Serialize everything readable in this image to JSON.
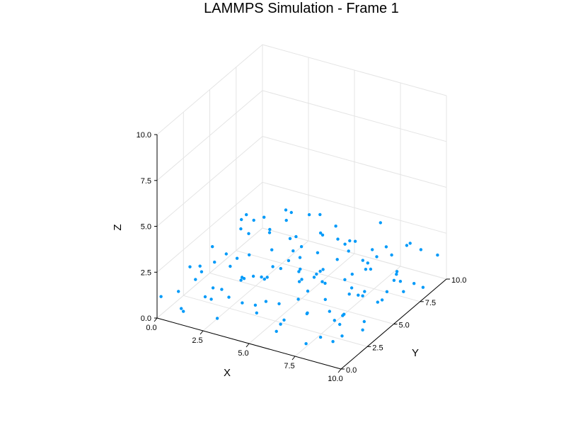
{
  "chart_data": {
    "type": "scatter",
    "title": "LAMMPS Simulation - Frame 1",
    "xlabel": "X",
    "ylabel": "Y",
    "zlabel": "Z",
    "xlim": [
      0,
      10
    ],
    "ylim": [
      0,
      10
    ],
    "zlim": [
      0,
      10
    ],
    "xticks": [
      "0.0",
      "2.5",
      "5.0",
      "7.5",
      "10.0"
    ],
    "yticks": [
      "0.0",
      "2.5",
      "5.0",
      "7.5",
      "10.0"
    ],
    "zticks": [
      "0.0",
      "2.5",
      "5.0",
      "7.5",
      "10.0"
    ],
    "grid": true,
    "legend": "none",
    "marker_color": "#009af9",
    "series": [
      {
        "points": [
          [
            0.1,
            0.2,
            1.1
          ],
          [
            0.3,
            1.5,
            0.8
          ],
          [
            0.5,
            3.2,
            1.4
          ],
          [
            0.2,
            5.1,
            0.6
          ],
          [
            0.4,
            7.3,
            1.9
          ],
          [
            0.6,
            9.1,
            1.2
          ],
          [
            1.2,
            0.4,
            0.5
          ],
          [
            1.1,
            2.3,
            1.7
          ],
          [
            1.4,
            4.5,
            1.0
          ],
          [
            1.0,
            6.2,
            2.1
          ],
          [
            1.3,
            8.4,
            0.9
          ],
          [
            1.5,
            9.6,
            1.6
          ],
          [
            2.1,
            0.9,
            1.3
          ],
          [
            2.3,
            2.8,
            0.4
          ],
          [
            2.0,
            4.1,
            1.8
          ],
          [
            2.4,
            6.7,
            1.1
          ],
          [
            2.2,
            8.9,
            2.0
          ],
          [
            2.6,
            1.6,
            1.5
          ],
          [
            3.1,
            0.3,
            0.7
          ],
          [
            3.3,
            2.2,
            1.9
          ],
          [
            3.0,
            3.9,
            1.2
          ],
          [
            3.4,
            5.8,
            0.8
          ],
          [
            3.2,
            7.6,
            1.6
          ],
          [
            3.5,
            9.4,
            1.0
          ],
          [
            4.0,
            1.1,
            1.4
          ],
          [
            4.2,
            3.0,
            0.6
          ],
          [
            4.4,
            4.8,
            2.0
          ],
          [
            4.1,
            6.4,
            1.3
          ],
          [
            4.3,
            8.2,
            1.7
          ],
          [
            4.6,
            9.8,
            0.5
          ],
          [
            5.0,
            0.6,
            1.8
          ],
          [
            5.2,
            2.5,
            1.0
          ],
          [
            5.4,
            4.3,
            1.5
          ],
          [
            5.1,
            6.0,
            0.7
          ],
          [
            5.3,
            7.9,
            1.9
          ],
          [
            5.5,
            9.2,
            1.2
          ],
          [
            6.1,
            1.4,
            0.9
          ],
          [
            6.3,
            3.3,
            1.6
          ],
          [
            6.0,
            5.2,
            1.1
          ],
          [
            6.4,
            7.0,
            2.0
          ],
          [
            6.2,
            8.7,
            0.6
          ],
          [
            6.6,
            0.2,
            1.4
          ],
          [
            7.0,
            2.0,
            1.2
          ],
          [
            7.2,
            3.8,
            0.5
          ],
          [
            7.4,
            5.6,
            1.7
          ],
          [
            7.1,
            7.4,
            1.0
          ],
          [
            7.3,
            9.0,
            1.5
          ],
          [
            7.6,
            1.0,
            1.9
          ],
          [
            8.1,
            2.7,
            0.8
          ],
          [
            8.3,
            4.6,
            1.3
          ],
          [
            8.0,
            6.3,
            1.8
          ],
          [
            8.4,
            8.1,
            0.9
          ],
          [
            8.2,
            9.7,
            1.6
          ],
          [
            8.6,
            0.5,
            1.1
          ],
          [
            9.0,
            1.9,
            1.7
          ],
          [
            9.2,
            3.6,
            0.6
          ],
          [
            9.4,
            5.4,
            1.4
          ],
          [
            9.1,
            7.2,
            1.0
          ],
          [
            9.3,
            8.8,
            2.0
          ],
          [
            9.6,
            0.8,
            1.3
          ],
          [
            9.8,
            2.4,
            0.9
          ],
          [
            9.7,
            4.0,
            1.6
          ],
          [
            9.9,
            6.1,
            1.2
          ],
          [
            9.5,
            7.8,
            0.7
          ],
          [
            9.8,
            9.5,
            1.5
          ],
          [
            0.8,
            0.9,
            0.3
          ],
          [
            1.7,
            3.6,
            2.2
          ],
          [
            2.8,
            5.3,
            0.3
          ],
          [
            3.7,
            1.8,
            2.3
          ],
          [
            4.8,
            7.1,
            0.4
          ],
          [
            5.7,
            3.5,
            2.4
          ],
          [
            6.8,
            6.6,
            0.3
          ],
          [
            7.8,
            4.2,
            2.2
          ],
          [
            8.7,
            1.5,
            0.4
          ],
          [
            9.4,
            3.1,
            2.3
          ],
          [
            0.9,
            6.9,
            2.5
          ],
          [
            1.9,
            9.3,
            0.3
          ],
          [
            2.9,
            7.2,
            2.6
          ],
          [
            3.8,
            8.6,
            0.4
          ],
          [
            4.7,
            5.5,
            2.5
          ],
          [
            5.8,
            1.2,
            0.3
          ],
          [
            6.7,
            9.5,
            2.4
          ],
          [
            7.7,
            0.7,
            0.4
          ],
          [
            8.8,
            6.9,
            2.5
          ],
          [
            9.7,
            8.3,
            0.3
          ],
          [
            0.6,
            4.2,
            2.0
          ],
          [
            1.6,
            7.9,
            1.4
          ],
          [
            2.7,
            0.6,
            2.1
          ],
          [
            3.6,
            4.7,
            1.5
          ],
          [
            4.5,
            2.6,
            2.2
          ],
          [
            5.6,
            8.5,
            1.6
          ],
          [
            6.5,
            4.4,
            2.3
          ],
          [
            7.5,
            6.9,
            1.7
          ],
          [
            8.5,
            3.4,
            2.0
          ],
          [
            9.5,
            5.9,
            1.8
          ],
          [
            0.3,
            2.6,
            1.6
          ],
          [
            1.4,
            1.2,
            1.9
          ],
          [
            2.5,
            3.7,
            1.1
          ],
          [
            3.5,
            6.8,
            1.3
          ],
          [
            4.5,
            9.1,
            1.8
          ],
          [
            5.4,
            5.7,
            1.1
          ],
          [
            6.3,
            2.4,
            1.6
          ],
          [
            7.3,
            8.1,
            1.4
          ],
          [
            8.3,
            5.2,
            1.2
          ],
          [
            9.3,
            1.1,
            1.7
          ],
          [
            1.8,
            5.6,
            1.2
          ],
          [
            2.6,
            9.9,
            1.5
          ],
          [
            3.9,
            3.1,
            1.8
          ],
          [
            4.9,
            0.9,
            1.2
          ],
          [
            5.9,
            6.8,
            1.5
          ],
          [
            6.9,
            3.9,
            1.9
          ],
          [
            7.9,
            9.9,
            1.3
          ],
          [
            8.9,
            2.2,
            1.6
          ],
          [
            0.5,
            8.3,
            1.4
          ],
          [
            1.2,
            6.6,
            1.7
          ],
          [
            2.2,
            1.3,
            1.0
          ],
          [
            3.3,
            9.7,
            1.8
          ],
          [
            4.4,
            5.9,
            1.0
          ],
          [
            5.5,
            3.9,
            1.6
          ],
          [
            6.6,
            8.9,
            1.2
          ],
          [
            7.6,
            2.7,
            1.8
          ],
          [
            8.6,
            7.7,
            1.0
          ],
          [
            9.6,
            4.6,
            1.4
          ]
        ]
      }
    ]
  }
}
